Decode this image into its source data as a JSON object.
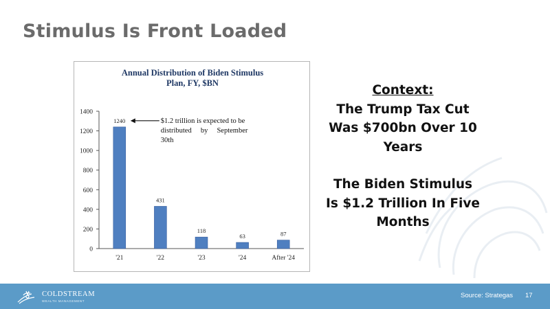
{
  "slide": {
    "title": "Stimulus Is Front Loaded"
  },
  "context": {
    "heading": "Context:",
    "lines1": [
      "The Trump Tax Cut",
      "Was $700bn Over 10",
      "Years"
    ],
    "lines2": [
      "The Biden Stimulus",
      "Is $1.2 Trillion In Five",
      "Months"
    ]
  },
  "footer": {
    "brand": "COLDSTREAM",
    "brand_sub": "WEALTH MANAGEMENT",
    "source": "Source:  Strategas",
    "page": "17"
  },
  "colors": {
    "bar": "#4f7fc0",
    "footer": "#5b9bc8",
    "title_text": "#6b6b6b",
    "chart_title": "#1f3864"
  },
  "chart_data": {
    "type": "bar",
    "title_lines": [
      "Annual Distribution of Biden Stimulus",
      "Plan, FY, $BN"
    ],
    "categories": [
      "'21",
      "'22",
      "'23",
      "'24",
      "After '24"
    ],
    "values": [
      1240,
      431,
      118,
      63,
      87
    ],
    "data_labels": [
      "1240",
      "431",
      "118",
      "63",
      "87"
    ],
    "ylim": [
      0,
      1400
    ],
    "yticks": [
      0,
      200,
      400,
      600,
      800,
      1000,
      1200,
      1400
    ],
    "grid": false,
    "legend": "none",
    "annotation": {
      "category_index": 0,
      "lines": [
        "$1.2 trillion is expected to be",
        "distributed     by     September",
        "30th"
      ]
    }
  }
}
